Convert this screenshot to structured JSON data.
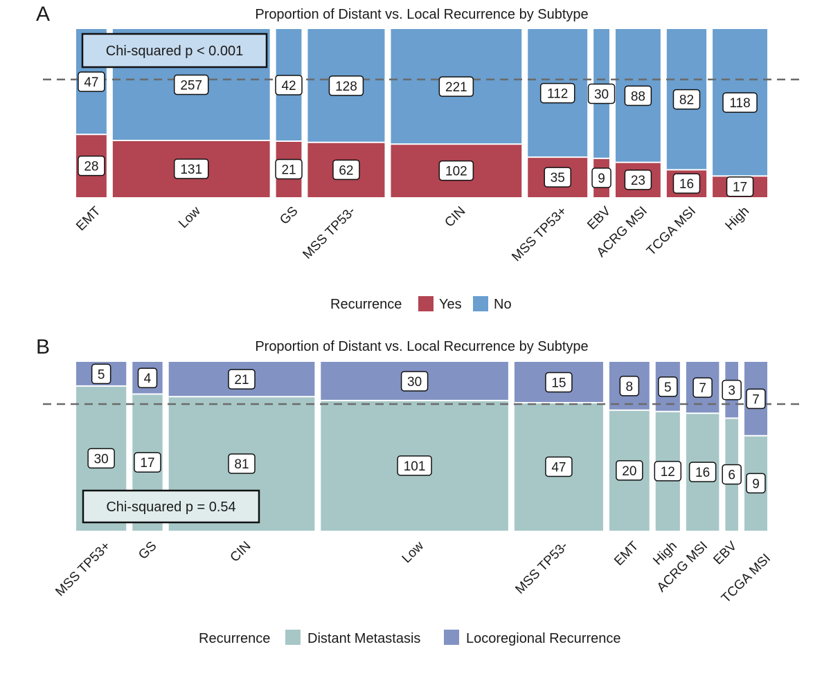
{
  "chart_data": [
    {
      "type": "mosaic",
      "panel_letter": "A",
      "title": "Proportion of Distant vs. Local Recurrence by Subtype",
      "annotation": "Chi-squared p < 0.001",
      "legend_title": "Recurrence",
      "reference_line": 0.7,
      "categories": [
        "EMT",
        "Low",
        "GS",
        "MSS TP53-",
        "CIN",
        "MSS TP53+",
        "EBV",
        "ACRG MSI",
        "TCGA MSI",
        "High"
      ],
      "series": [
        {
          "name": "Yes",
          "color": "#b34452",
          "values": [
            28,
            131,
            21,
            62,
            102,
            35,
            9,
            23,
            16,
            17
          ]
        },
        {
          "name": "No",
          "color": "#6a9fcf",
          "values": [
            47,
            257,
            42,
            128,
            221,
            112,
            30,
            88,
            82,
            118
          ]
        }
      ]
    },
    {
      "type": "mosaic",
      "panel_letter": "B",
      "title": "Proportion of Distant vs. Local Recurrence by Subtype",
      "annotation": "Chi-squared p = 0.54",
      "legend_title": "Recurrence",
      "reference_line": 0.75,
      "categories": [
        "MSS TP53+",
        "GS",
        "CIN",
        "Low",
        "MSS TP53-",
        "EMT",
        "High",
        "ACRG MSI",
        "EBV",
        "TCGA MSI"
      ],
      "series": [
        {
          "name": "Distant Metastasis",
          "color": "#a7c7c7",
          "values": [
            30,
            17,
            81,
            101,
            47,
            20,
            12,
            16,
            6,
            9
          ]
        },
        {
          "name": "Locoregional Recurrence",
          "color": "#8292c3",
          "values": [
            5,
            4,
            21,
            30,
            15,
            8,
            5,
            7,
            3,
            7
          ]
        }
      ]
    }
  ]
}
